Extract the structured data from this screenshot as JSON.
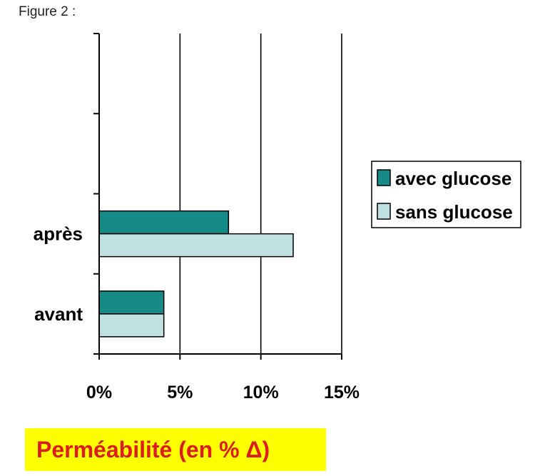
{
  "figure_label": "Figure 2 :",
  "chart_data": {
    "type": "bar",
    "orientation": "horizontal",
    "categories": [
      "avant",
      "après"
    ],
    "series": [
      {
        "name": "avec glucose",
        "values": [
          4,
          8
        ],
        "color": "#158a87"
      },
      {
        "name": "sans glucose",
        "values": [
          4,
          12
        ],
        "color": "#bfe1e1"
      }
    ],
    "xlim": [
      0,
      15
    ],
    "x_ticks": [
      0,
      5,
      10,
      15
    ],
    "x_tick_labels": [
      "0%",
      "5%",
      "10%",
      "15%"
    ],
    "xlabel": "Perméabilité (en % Δ)",
    "grid": "vertical",
    "legend_position": "right"
  }
}
